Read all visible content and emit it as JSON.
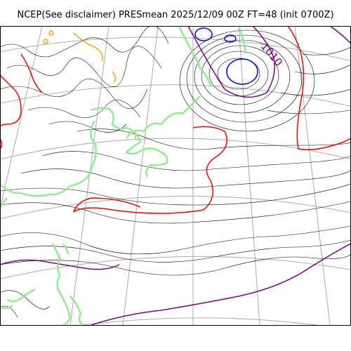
{
  "title": "NCEP(See disclaimer) PRESmean 2025/12/09 00Z FT=48 (init 0700Z)",
  "map": {
    "contour_label": "1010",
    "colors": {
      "isobar": "#000000",
      "low_contour": "#0000ff",
      "labeled_isobar": "#800080",
      "high_contour": "#ff0000",
      "accent_contour": "#ffa500",
      "coastline": "#90ee90",
      "graticule": "#a9a9a9"
    }
  }
}
